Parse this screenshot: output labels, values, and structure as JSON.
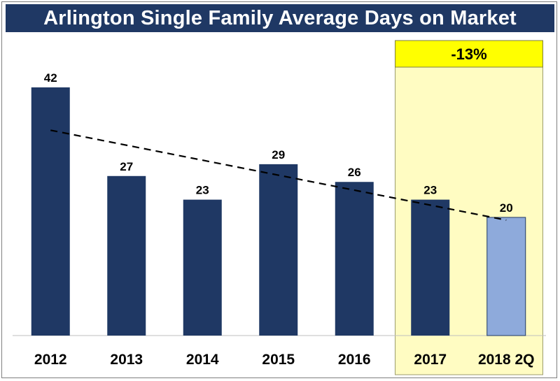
{
  "title": "Arlington Single Family Average Days on Market",
  "colors": {
    "title_background": "#1f3864",
    "bar": "#1f3864",
    "bar_highlight": "#8eaadb",
    "highlight_region": "#fffcc2",
    "callout": "#ffff00"
  },
  "callout": {
    "text": "-13%"
  },
  "chart_data": {
    "type": "bar",
    "categories": [
      "2012",
      "2013",
      "2014",
      "2015",
      "2016",
      "2017",
      "2018 2Q"
    ],
    "values": [
      42,
      27,
      23,
      29,
      26,
      23,
      20
    ],
    "title": "Arlington Single Family Average Days on Market",
    "xlabel": "",
    "ylabel": "",
    "ylim": [
      0,
      42
    ],
    "grid": false,
    "legend": "none",
    "trendline": "linear, dashed",
    "highlight_categories": [
      "2017",
      "2018 2Q"
    ],
    "highlight_bar": "2018 2Q"
  }
}
